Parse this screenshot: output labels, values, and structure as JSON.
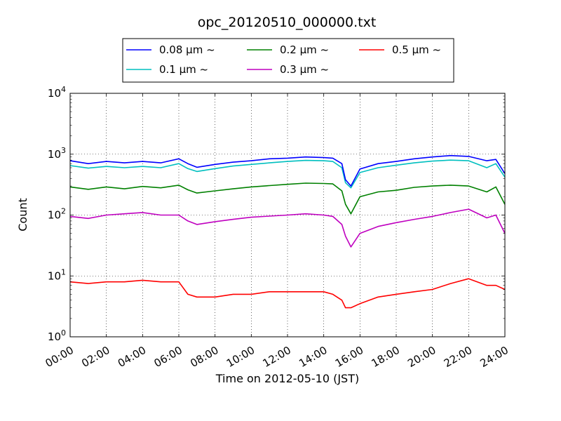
{
  "chart_data": {
    "type": "line",
    "title": "opc_20120510_000000.txt",
    "xlabel": "Time on 2012-05-10 (JST)",
    "ylabel": "Count",
    "yscale": "log",
    "ylim": [
      1,
      10000
    ],
    "xlim": [
      0,
      24
    ],
    "x_tick_labels": [
      "00:00",
      "02:00",
      "04:00",
      "06:00",
      "08:00",
      "10:00",
      "12:00",
      "14:00",
      "16:00",
      "18:00",
      "20:00",
      "22:00",
      "24:00"
    ],
    "y_tick_labels": [
      {
        "base": "10",
        "exp": "0"
      },
      {
        "base": "10",
        "exp": "1"
      },
      {
        "base": "10",
        "exp": "2"
      },
      {
        "base": "10",
        "exp": "3"
      },
      {
        "base": "10",
        "exp": "4"
      }
    ],
    "grid": true,
    "legend_position": "top-center",
    "series": [
      {
        "name": "0.08 μm ~",
        "color": "#0000ff",
        "x": [
          0,
          1,
          2,
          3,
          4,
          5,
          6,
          6.5,
          7,
          8,
          9,
          10,
          11,
          12,
          13,
          14,
          14.5,
          15,
          15.2,
          15.5,
          16,
          17,
          18,
          19,
          20,
          21,
          22,
          23,
          23.5,
          24
        ],
        "y": [
          780,
          700,
          760,
          720,
          760,
          720,
          840,
          700,
          610,
          680,
          740,
          780,
          840,
          860,
          900,
          880,
          860,
          700,
          380,
          300,
          570,
          700,
          760,
          840,
          900,
          950,
          920,
          780,
          820,
          480
        ]
      },
      {
        "name": "0.1 μm ~",
        "color": "#00bfbf",
        "x": [
          0,
          1,
          2,
          3,
          4,
          5,
          6,
          6.5,
          7,
          8,
          9,
          10,
          11,
          12,
          13,
          14,
          14.5,
          15,
          15.2,
          15.5,
          16,
          17,
          18,
          19,
          20,
          21,
          22,
          23,
          23.5,
          24
        ],
        "y": [
          650,
          590,
          630,
          600,
          630,
          600,
          700,
          580,
          520,
          580,
          640,
          680,
          720,
          760,
          790,
          780,
          760,
          600,
          340,
          280,
          500,
          600,
          660,
          720,
          770,
          800,
          780,
          600,
          700,
          420
        ]
      },
      {
        "name": "0.2 μm ~",
        "color": "#008000",
        "x": [
          0,
          1,
          2,
          3,
          4,
          5,
          6,
          6.5,
          7,
          8,
          9,
          10,
          11,
          12,
          13,
          14,
          14.5,
          15,
          15.2,
          15.5,
          16,
          17,
          18,
          19,
          20,
          21,
          22,
          23,
          23.5,
          24
        ],
        "y": [
          290,
          265,
          290,
          270,
          295,
          280,
          310,
          260,
          230,
          250,
          270,
          290,
          305,
          320,
          335,
          330,
          325,
          250,
          150,
          105,
          200,
          240,
          255,
          285,
          300,
          310,
          300,
          240,
          290,
          150
        ]
      },
      {
        "name": "0.3 μm ~",
        "color": "#bf00bf",
        "x": [
          0,
          1,
          2,
          3,
          4,
          5,
          6,
          6.5,
          7,
          8,
          9,
          10,
          11,
          12,
          13,
          14,
          14.5,
          15,
          15.2,
          15.5,
          16,
          17,
          18,
          19,
          20,
          21,
          22,
          23,
          23.5,
          24
        ],
        "y": [
          95,
          88,
          100,
          105,
          110,
          100,
          100,
          80,
          70,
          78,
          85,
          92,
          96,
          100,
          105,
          100,
          95,
          70,
          45,
          30,
          50,
          65,
          75,
          85,
          95,
          110,
          125,
          90,
          100,
          50
        ]
      },
      {
        "name": "0.5 μm ~",
        "color": "#ff0000",
        "x": [
          0,
          1,
          2,
          3,
          4,
          5,
          6,
          6.5,
          7,
          8,
          9,
          10,
          11,
          12,
          13,
          14,
          14.5,
          15,
          15.2,
          15.5,
          16,
          17,
          18,
          19,
          20,
          21,
          22,
          23,
          23.5,
          24
        ],
        "y": [
          8,
          7.5,
          8,
          8,
          8.5,
          8,
          8,
          5,
          4.5,
          4.5,
          5,
          5,
          5.5,
          5.5,
          5.5,
          5.5,
          5,
          4,
          3,
          3,
          3.5,
          4.5,
          5,
          5.5,
          6,
          7.5,
          9,
          7,
          7,
          6
        ]
      }
    ]
  }
}
